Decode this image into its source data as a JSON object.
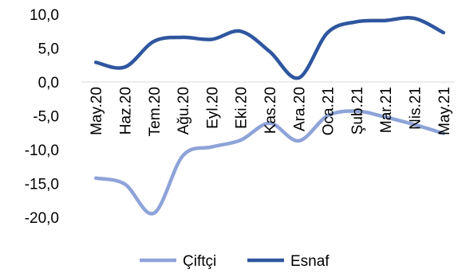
{
  "chart_data": {
    "type": "line",
    "title": "",
    "xlabel": "",
    "ylabel": "",
    "categories": [
      "May.20",
      "Haz.20",
      "Tem.20",
      "Ağu.20",
      "Eyl.20",
      "Eki.20",
      "Kas.20",
      "Ara.20",
      "Oca.21",
      "Şub.21",
      "Mar.21",
      "Nis.21",
      "May.21"
    ],
    "ylim": [
      -20,
      10
    ],
    "yticks": [
      "10,0",
      "5,0",
      "0,0",
      "-5,0",
      "-10,0",
      "-15,0",
      "-20,0"
    ],
    "ytick_values": [
      10,
      5,
      0,
      -5,
      -10,
      -15,
      -20
    ],
    "grid": false,
    "legend_position": "bottom",
    "series": [
      {
        "name": "Çiftçi",
        "color": "#8EA3D8",
        "values": [
          -14.2,
          -15.1,
          -19.4,
          -10.9,
          -9.6,
          -8.6,
          -6.1,
          -8.7,
          -5.0,
          -4.3,
          -5.2,
          -6.3,
          -7.6
        ]
      },
      {
        "name": "Esnaf",
        "color": "#2F569F",
        "values": [
          2.9,
          2.2,
          6.0,
          6.6,
          6.3,
          7.5,
          4.5,
          0.6,
          7.3,
          8.9,
          9.1,
          9.4,
          7.3
        ]
      }
    ]
  }
}
